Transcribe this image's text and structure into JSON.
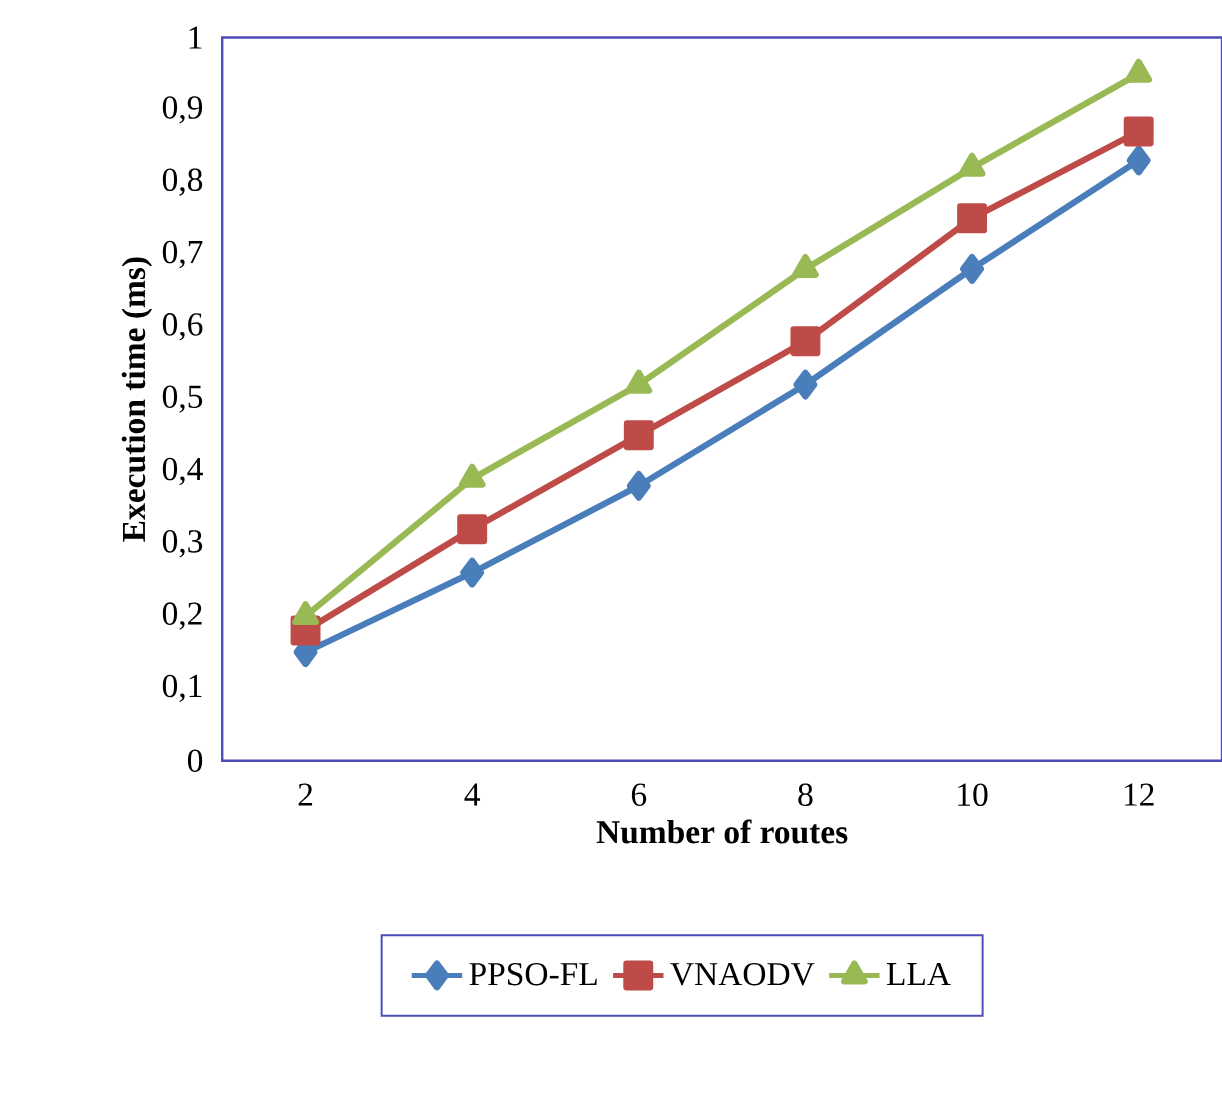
{
  "chart_data": {
    "type": "line",
    "xlabel": "Number of routes",
    "ylabel": "Execution time (ms)",
    "categories": [
      "2",
      "4",
      "6",
      "8",
      "10",
      "12"
    ],
    "ylim": [
      0,
      1
    ],
    "yticks": [
      0,
      {
        "value": 0.1,
        "label": "0,1"
      },
      {
        "value": 0.2,
        "label": "0,2"
      },
      {
        "value": 0.3,
        "label": "0,3"
      },
      {
        "value": 0.4,
        "label": "0,4"
      },
      {
        "value": 0.5,
        "label": "0,5"
      },
      {
        "value": 0.6,
        "label": "0,6"
      },
      {
        "value": 0.7,
        "label": "0,7"
      },
      {
        "value": 0.8,
        "label": "0,8"
      },
      {
        "value": 0.9,
        "label": "0,9"
      },
      1
    ],
    "grid": false,
    "legend": "bottom",
    "line_style": "solid",
    "series": [
      {
        "name": "PPSO-FL",
        "color": "#4a7ebb",
        "marker": "diamond",
        "values": [
          0.15,
          0.26,
          0.38,
          0.52,
          0.68,
          0.83
        ]
      },
      {
        "name": "VNAODV",
        "color": "#be4b48",
        "marker": "square",
        "values": [
          0.18,
          0.32,
          0.45,
          0.58,
          0.75,
          0.87
        ]
      },
      {
        "name": "LLA",
        "color": "#98b954",
        "marker": "triangle",
        "values": [
          0.2,
          0.39,
          0.52,
          0.68,
          0.82,
          0.95
        ]
      }
    ]
  }
}
